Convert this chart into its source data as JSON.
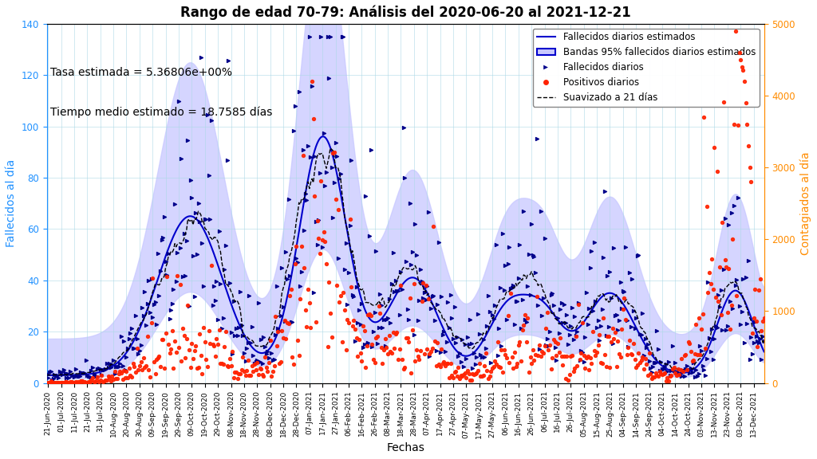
{
  "title": "Rango de edad 70-79: Análisis del 2020-06-20 al 2021-12-21",
  "xlabel": "Fechas",
  "ylabel_left": "Fallecidos al día",
  "ylabel_right": "Contagiados al día",
  "annotation1": "Tasa estimada = 5.36806e+00%",
  "annotation2": "Tiempo medio estimado = 18.7585 días",
  "ylim_left": [
    0,
    140
  ],
  "ylim_right": [
    0,
    5000
  ],
  "line_color": "#0000cc",
  "band_color": "#c8c8ff",
  "scatter_deaths_color": "#00008b",
  "scatter_positives_color": "#ff2200",
  "smooth_color": "#000000",
  "left_tick_color": "#1E90FF",
  "right_tick_color": "#FF8C00",
  "legend_labels": [
    "Fallecidos diarios estimados",
    "Bandas 95% fallecidos diarios estimados",
    "Fallecidos diarios",
    "Positivos diarios",
    "Suavizado a 21 días"
  ]
}
